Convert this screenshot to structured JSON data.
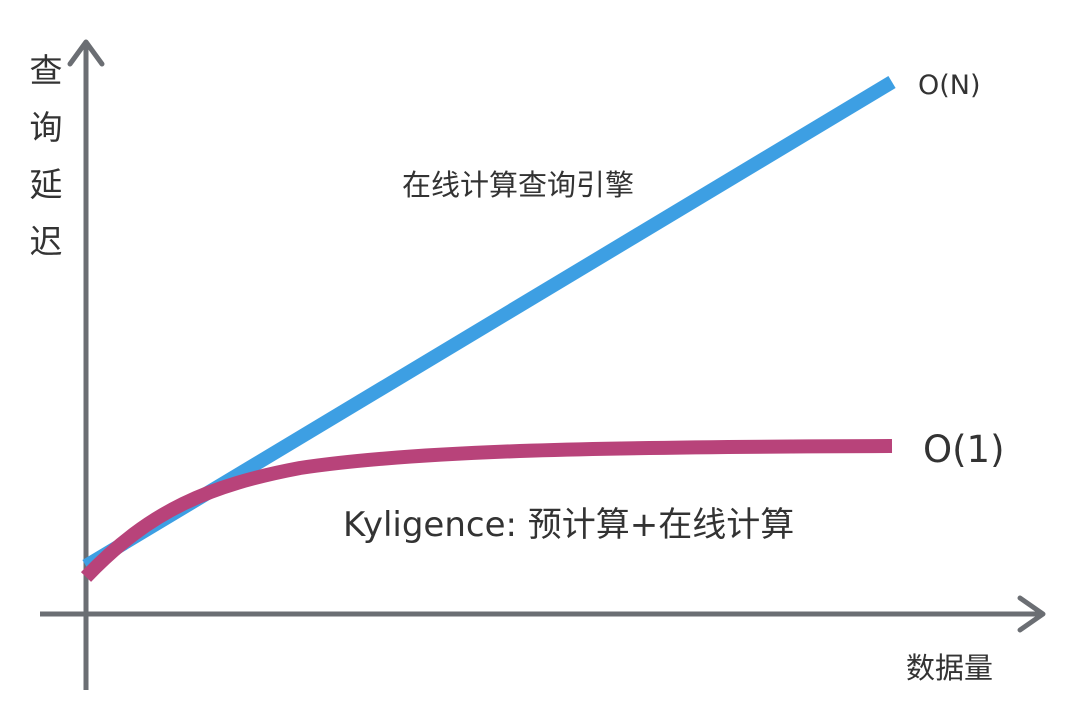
{
  "y_axis_label": [
    "查",
    "询",
    "延",
    "迟"
  ],
  "x_axis_label": "数据量",
  "lines": [
    {
      "id": "online",
      "complexity_label": "O(N)",
      "description": "在线计算查询引擎",
      "color": "#3d9fe3",
      "shape": "linear"
    },
    {
      "id": "kyligence",
      "complexity_label": "O(1)",
      "description": "Kyligence: 预计算+在线计算",
      "color": "#b8437a",
      "shape": "saturating"
    }
  ],
  "axis_color": "#6b6e73"
}
